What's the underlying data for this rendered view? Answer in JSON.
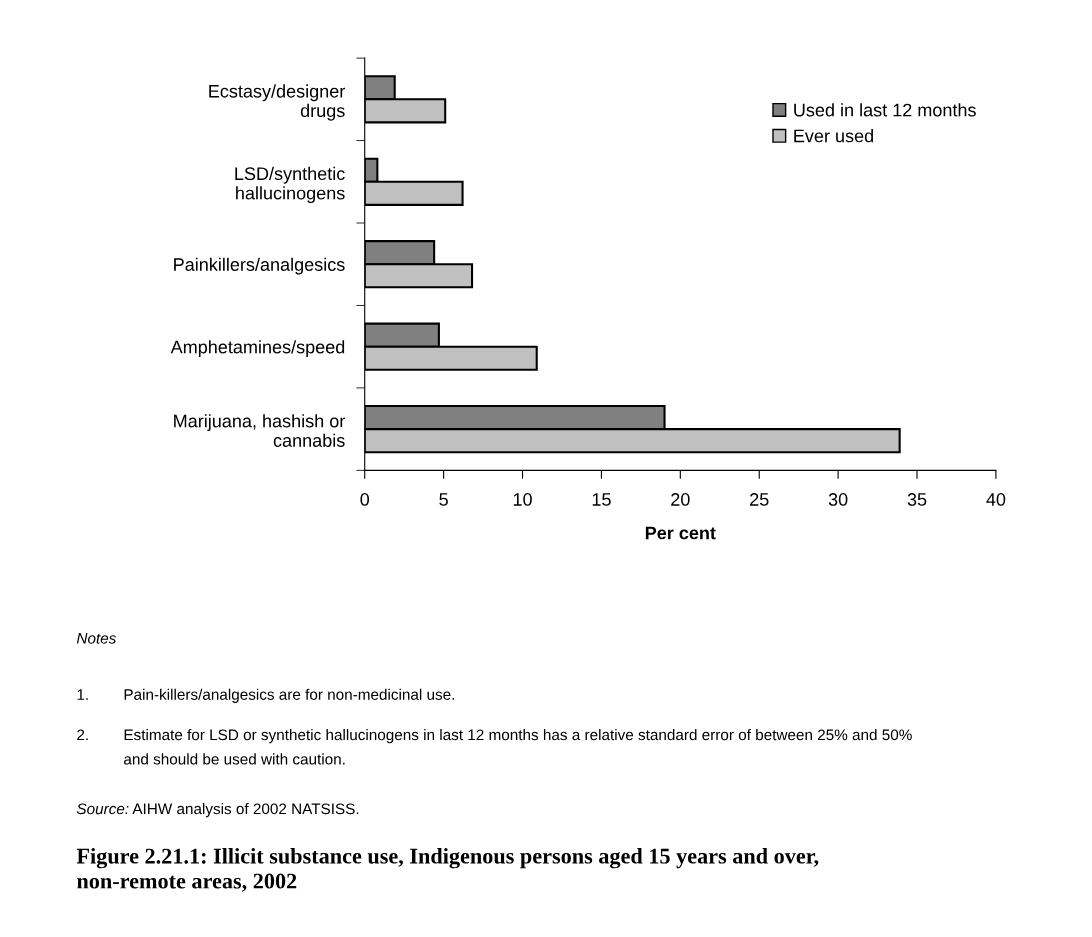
{
  "chart_data": {
    "type": "bar",
    "orientation": "horizontal",
    "title": "Figure 2.21.1: Illicit substance use, Indigenous persons aged 15 years and over,\nnon-remote areas, 2002",
    "xlabel": "Per cent",
    "categories": [
      "Ecstasy/designer\ndrugs",
      "LSD/synthetic\nhallucinogens",
      "Painkillers/analgesics",
      "Amphetamines/speed",
      "Marijuana, hashish or\ncannabis"
    ],
    "series": [
      {
        "name": "Used in last 12 months",
        "color": "#808080",
        "values": [
          1.9,
          0.8,
          4.4,
          4.7,
          19.0
        ]
      },
      {
        "name": "Ever used",
        "color": "#c0c0c0",
        "values": [
          5.1,
          6.2,
          6.8,
          10.9,
          33.9
        ]
      }
    ],
    "xlim": [
      0,
      40
    ],
    "xticks": [
      0,
      5,
      10,
      15,
      20,
      25,
      30,
      35,
      40
    ],
    "grid": false,
    "legend": "top right",
    "annotations": [
      "Notes",
      "1.\tPain-killers/analgesics are for non-medicinal use.",
      "2.\tEstimate for LSD or synthetic hallucinogens in last 12 months has a relative standard error of between 25% and 50%\n\tand should be used with caution.",
      "Source: AIHW analysis of 2002 NATSISS."
    ]
  }
}
